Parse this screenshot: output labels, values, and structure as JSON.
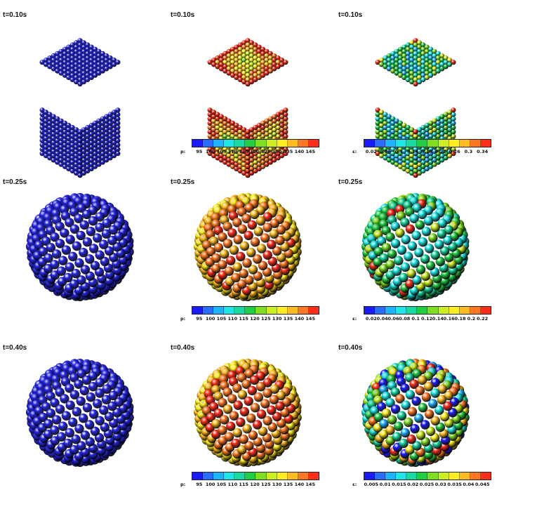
{
  "colormap": [
    "#1a1aff",
    "#2b6cff",
    "#1fb3ff",
    "#1ee6e6",
    "#18d9a0",
    "#22cc44",
    "#7fdd22",
    "#ccee22",
    "#ffee22",
    "#ffbb22",
    "#ff7722",
    "#ff2d1a"
  ],
  "panels": [
    {
      "id": "r1c1",
      "time": "t=0.10s",
      "shape": "cube",
      "scheme": "blue"
    },
    {
      "id": "r1c2",
      "time": "t=0.10s",
      "shape": "cube",
      "scheme": "pressure-cube",
      "colorbar": {
        "prefix": "p:",
        "ticks": [
          "95",
          "100",
          "105",
          "110",
          "115",
          "120",
          "125",
          "130",
          "135",
          "140",
          "145"
        ]
      }
    },
    {
      "id": "r1c3",
      "time": "t=0.10s",
      "shape": "cube",
      "scheme": "strain-cube",
      "colorbar": {
        "prefix": "ε:",
        "ticks": [
          "0.02",
          "0.06",
          "0.1",
          "0.14",
          "0.18",
          "0.22",
          "0.26",
          "0.3",
          "0.34"
        ]
      }
    },
    {
      "id": "r2c1",
      "time": "t=0.25s",
      "shape": "ball",
      "scheme": "blue"
    },
    {
      "id": "r2c2",
      "time": "t=0.25s",
      "shape": "ball",
      "scheme": "pressure-hot",
      "colorbar": {
        "prefix": "p:",
        "ticks": [
          "95",
          "100",
          "105",
          "110",
          "115",
          "120",
          "125",
          "130",
          "135",
          "140",
          "145"
        ]
      }
    },
    {
      "id": "r2c3",
      "time": "t=0.25s",
      "shape": "ball",
      "scheme": "strain-mid",
      "colorbar": {
        "prefix": "ε:",
        "ticks": [
          "0.02",
          "0.04",
          "0.06",
          "0.08",
          "0.1",
          "0.12",
          "0.14",
          "0.16",
          "0.18",
          "0.2",
          "0.22"
        ]
      }
    },
    {
      "id": "r3c1",
      "time": "t=0.40s",
      "shape": "ball",
      "scheme": "blue"
    },
    {
      "id": "r3c2",
      "time": "t=0.40s",
      "shape": "ball",
      "scheme": "pressure-hot",
      "colorbar": {
        "prefix": "p:",
        "ticks": [
          "95",
          "100",
          "105",
          "110",
          "115",
          "120",
          "125",
          "130",
          "135",
          "140",
          "145"
        ]
      }
    },
    {
      "id": "r3c3",
      "time": "t=0.40s",
      "shape": "ball",
      "scheme": "strain-mixed",
      "colorbar": {
        "prefix": "ε:",
        "ticks": [
          "0.005",
          "0.01",
          "0.015",
          "0.02",
          "0.025",
          "0.03",
          "0.035",
          "0.04",
          "0.045"
        ]
      }
    }
  ]
}
